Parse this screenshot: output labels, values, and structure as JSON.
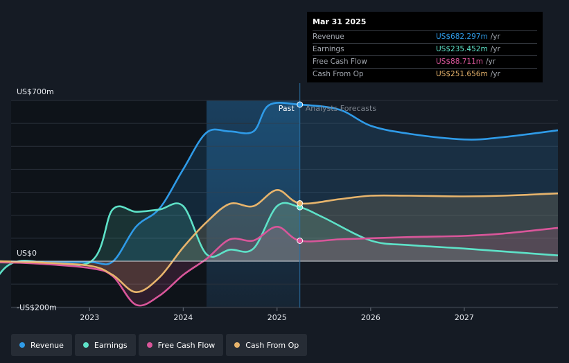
{
  "chart_data": {
    "type": "area",
    "x_ticks": [
      "2023",
      "2024",
      "2025",
      "2026",
      "2027"
    ],
    "y_labels": {
      "top": "US$700m",
      "zero": "US$0",
      "bottom": "-US$200m"
    },
    "ylim": [
      -200,
      700
    ],
    "past_label": "Past",
    "forecast_label": "Analysts Forecasts",
    "series": [
      {
        "name": "Revenue",
        "color": "#2f9be8",
        "points": [
          [
            "2022-01-01",
            0
          ],
          [
            "2022-06-01",
            -3
          ],
          [
            "2023-01-01",
            -4
          ],
          [
            "2023-04-01",
            -2
          ],
          [
            "2023-07-01",
            150
          ],
          [
            "2023-10-01",
            230
          ],
          [
            "2024-01-01",
            400
          ],
          [
            "2024-04-01",
            560
          ],
          [
            "2024-07-01",
            565
          ],
          [
            "2024-10-01",
            565
          ],
          [
            "2024-12-01",
            680
          ],
          [
            "2025-03-31",
            682
          ],
          [
            "2025-09-01",
            660
          ],
          [
            "2026-01-01",
            590
          ],
          [
            "2026-06-01",
            555
          ],
          [
            "2027-01-01",
            530
          ],
          [
            "2027-06-01",
            540
          ],
          [
            "2028-01-01",
            570
          ]
        ]
      },
      {
        "name": "Earnings",
        "color": "#5ee2c8",
        "points": [
          [
            "2022-01-01",
            -75
          ],
          [
            "2022-04-01",
            0
          ],
          [
            "2023-01-01",
            -5
          ],
          [
            "2023-04-01",
            225
          ],
          [
            "2023-07-01",
            215
          ],
          [
            "2023-10-01",
            225
          ],
          [
            "2024-01-01",
            240
          ],
          [
            "2024-04-01",
            30
          ],
          [
            "2024-07-01",
            50
          ],
          [
            "2024-10-01",
            55
          ],
          [
            "2025-01-01",
            240
          ],
          [
            "2025-03-31",
            235
          ],
          [
            "2025-07-01",
            190
          ],
          [
            "2026-01-01",
            90
          ],
          [
            "2026-06-01",
            70
          ],
          [
            "2027-01-01",
            55
          ],
          [
            "2028-01-01",
            25
          ]
        ]
      },
      {
        "name": "Free Cash Flow",
        "color": "#d9569a",
        "points": [
          [
            "2022-01-01",
            -5
          ],
          [
            "2022-06-01",
            -10
          ],
          [
            "2023-01-01",
            -30
          ],
          [
            "2023-04-01",
            -65
          ],
          [
            "2023-07-01",
            -190
          ],
          [
            "2023-10-01",
            -150
          ],
          [
            "2024-01-01",
            -60
          ],
          [
            "2024-04-01",
            10
          ],
          [
            "2024-07-01",
            95
          ],
          [
            "2024-10-01",
            90
          ],
          [
            "2025-01-01",
            150
          ],
          [
            "2025-03-31",
            89
          ],
          [
            "2025-09-01",
            95
          ],
          [
            "2026-01-01",
            100
          ],
          [
            "2026-06-01",
            105
          ],
          [
            "2027-01-01",
            110
          ],
          [
            "2027-06-01",
            120
          ],
          [
            "2028-01-01",
            145
          ]
        ]
      },
      {
        "name": "Cash From Op",
        "color": "#e7b46c",
        "points": [
          [
            "2022-01-01",
            0
          ],
          [
            "2022-06-01",
            -5
          ],
          [
            "2023-01-01",
            -20
          ],
          [
            "2023-04-01",
            -60
          ],
          [
            "2023-07-01",
            -135
          ],
          [
            "2023-10-01",
            -70
          ],
          [
            "2024-01-01",
            60
          ],
          [
            "2024-04-01",
            170
          ],
          [
            "2024-07-01",
            250
          ],
          [
            "2024-10-01",
            240
          ],
          [
            "2025-01-01",
            310
          ],
          [
            "2025-03-31",
            252
          ],
          [
            "2025-09-01",
            270
          ],
          [
            "2026-01-01",
            285
          ],
          [
            "2026-06-01",
            285
          ],
          [
            "2027-01-01",
            282
          ],
          [
            "2027-06-01",
            285
          ],
          [
            "2028-01-01",
            295
          ]
        ]
      }
    ],
    "past_end": "2025-03-31",
    "highlight_start": "2024-04-01"
  },
  "tooltip": {
    "date": "Mar 31 2025",
    "unit": "/yr",
    "rows": [
      {
        "label": "Revenue",
        "value": "US$682.297m",
        "color": "#2f9be8"
      },
      {
        "label": "Earnings",
        "value": "US$235.452m",
        "color": "#5ee2c8"
      },
      {
        "label": "Free Cash Flow",
        "value": "US$88.711m",
        "color": "#d9569a"
      },
      {
        "label": "Cash From Op",
        "value": "US$251.656m",
        "color": "#e7b46c"
      }
    ]
  },
  "legend": [
    {
      "label": "Revenue",
      "color": "#2f9be8"
    },
    {
      "label": "Earnings",
      "color": "#5ee2c8"
    },
    {
      "label": "Free Cash Flow",
      "color": "#d9569a"
    },
    {
      "label": "Cash From Op",
      "color": "#e7b46c"
    }
  ]
}
